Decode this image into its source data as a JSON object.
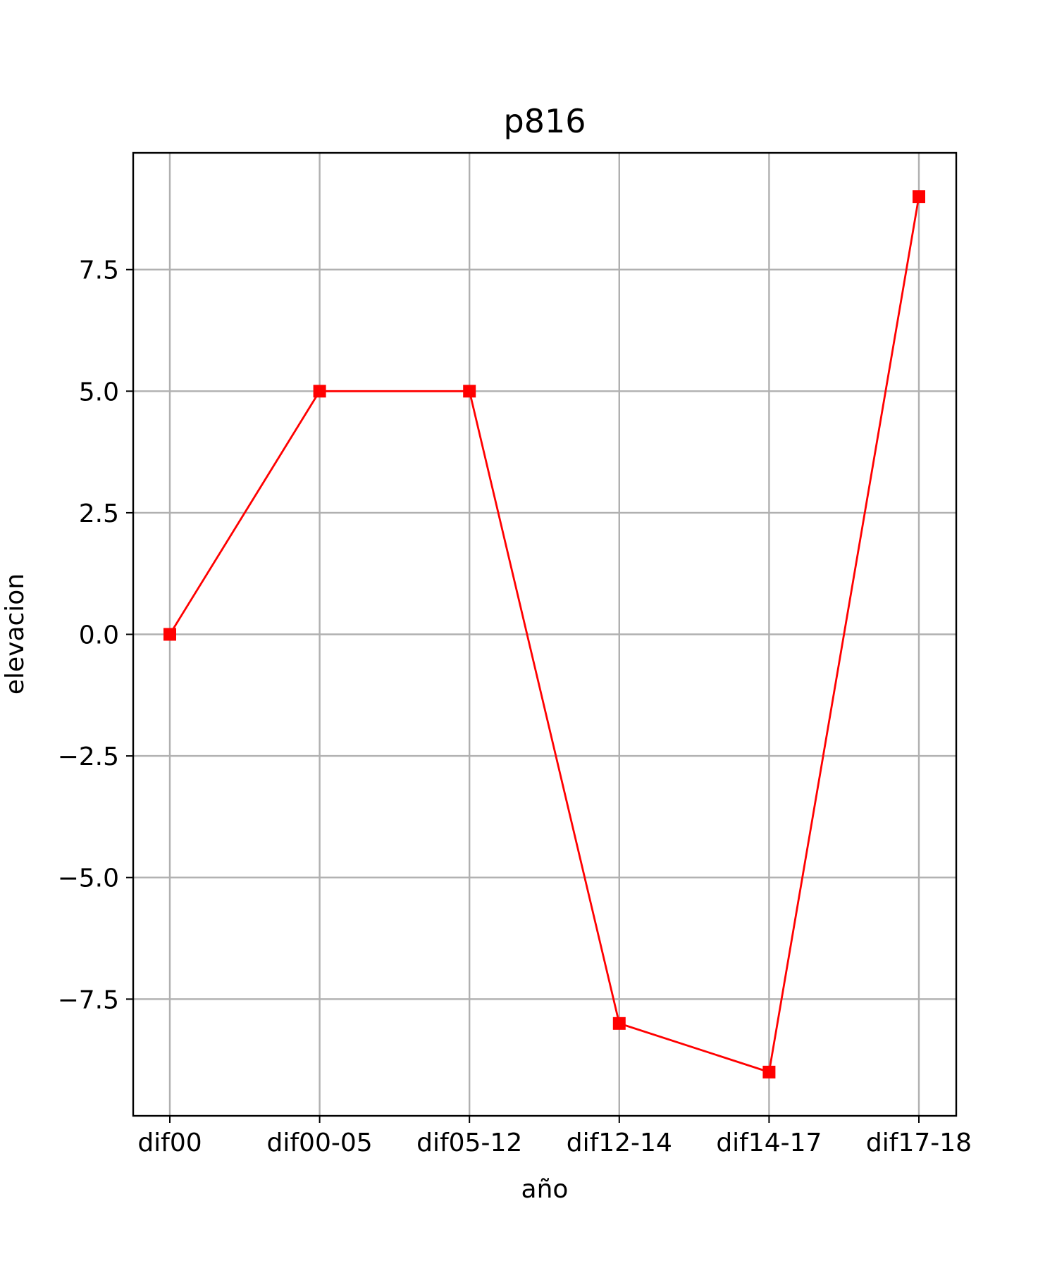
{
  "chart_data": {
    "type": "line",
    "title": "p816",
    "xlabel": "año",
    "ylabel": "elevacion",
    "categories": [
      "dif00",
      "dif00-05",
      "dif05-12",
      "dif12-14",
      "dif14-17",
      "dif17-18"
    ],
    "series": [
      {
        "values": [
          0,
          5,
          5,
          -8,
          -9,
          9
        ],
        "color": "#ff0000",
        "marker": "square"
      }
    ],
    "ylim": [
      -9.9,
      9.9
    ],
    "yticks": [
      -7.5,
      -5.0,
      -2.5,
      0.0,
      2.5,
      5.0,
      7.5
    ],
    "ytick_labels": [
      "−7.5",
      "−5.0",
      "−2.5",
      "0.0",
      "2.5",
      "5.0",
      "7.5"
    ],
    "grid": true,
    "colors": {
      "line": "#ff0000",
      "grid": "#b0b0b0",
      "frame": "#000000"
    }
  }
}
